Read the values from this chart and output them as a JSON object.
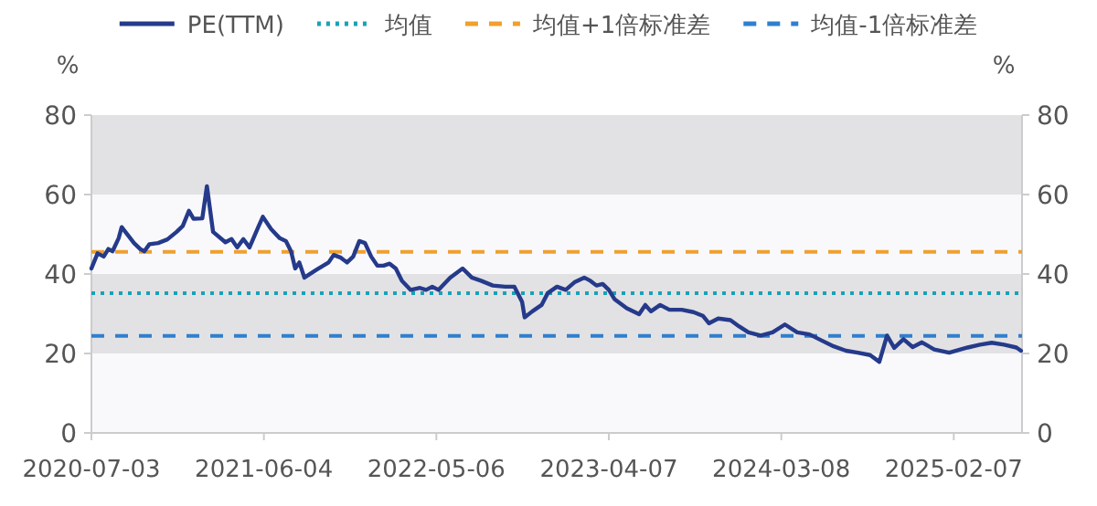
{
  "chart_data": {
    "type": "line",
    "ylabel": "%",
    "y2label": "%",
    "x": [
      "2020-07-03",
      "2020-07-15",
      "2020-07-27",
      "2020-08-05",
      "2020-08-13",
      "2020-08-25",
      "2020-08-31",
      "2020-09-12",
      "2020-09-24",
      "2020-10-06",
      "2020-10-14",
      "2020-10-24",
      "2020-11-10",
      "2020-11-28",
      "2020-12-16",
      "2020-12-28",
      "2021-01-09",
      "2021-01-18",
      "2021-02-04",
      "2021-02-13",
      "2021-02-25",
      "2021-03-21",
      "2021-04-02",
      "2021-04-13",
      "2021-04-25",
      "2021-05-07",
      "2021-05-25",
      "2021-06-02",
      "2021-06-18",
      "2021-07-05",
      "2021-07-17",
      "2021-07-27",
      "2021-08-04",
      "2021-08-12",
      "2021-08-22",
      "2021-09-15",
      "2021-10-08",
      "2021-10-18",
      "2021-11-01",
      "2021-11-13",
      "2021-11-25",
      "2021-12-07",
      "2021-12-18",
      "2021-12-30",
      "2022-01-11",
      "2022-01-23",
      "2022-02-04",
      "2022-02-16",
      "2022-02-28",
      "2022-03-17",
      "2022-04-04",
      "2022-04-16",
      "2022-04-28",
      "2022-05-10",
      "2022-06-02",
      "2022-06-26",
      "2022-07-14",
      "2022-08-01",
      "2022-08-24",
      "2022-09-17",
      "2022-10-05",
      "2022-10-20",
      "2022-10-25",
      "2022-11-09",
      "2022-11-27",
      "2022-12-09",
      "2022-12-27",
      "2023-01-13",
      "2023-01-31",
      "2023-02-18",
      "2023-03-02",
      "2023-03-14",
      "2023-03-26",
      "2023-04-07",
      "2023-04-18",
      "2023-05-12",
      "2023-06-05",
      "2023-06-17",
      "2023-06-28",
      "2023-07-16",
      "2023-08-03",
      "2023-08-27",
      "2023-09-19",
      "2023-10-07",
      "2023-10-19",
      "2023-11-06",
      "2023-11-30",
      "2023-12-17",
      "2024-01-04",
      "2024-01-28",
      "2024-02-20",
      "2024-03-15",
      "2024-04-08",
      "2024-05-02",
      "2024-05-25",
      "2024-06-18",
      "2024-07-12",
      "2024-08-04",
      "2024-08-28",
      "2024-09-15",
      "2024-09-30",
      "2024-10-14",
      "2024-11-01",
      "2024-11-19",
      "2024-12-07",
      "2024-12-31",
      "2025-01-29",
      "2025-03-06",
      "2025-03-30",
      "2025-04-22",
      "2025-05-16",
      "2025-06-09",
      "2025-06-18"
    ],
    "series": [
      {
        "name": "PE(TTM)",
        "color": "#253a8a",
        "values": [
          41.4,
          45.2,
          44.4,
          46.3,
          45.7,
          49.0,
          51.8,
          49.8,
          47.8,
          46.3,
          45.7,
          47.5,
          47.8,
          48.7,
          50.6,
          52.1,
          55.9,
          53.9,
          54.0,
          62.1,
          50.6,
          48.0,
          48.8,
          46.7,
          48.8,
          46.7,
          52.1,
          54.4,
          51.3,
          49.0,
          48.3,
          45.7,
          41.4,
          42.9,
          39.1,
          41.1,
          42.9,
          44.8,
          44.1,
          42.9,
          44.4,
          48.3,
          47.8,
          44.4,
          42.1,
          42.1,
          42.6,
          41.4,
          38.3,
          36.0,
          36.5,
          36.0,
          36.8,
          36.0,
          39.1,
          41.4,
          39.1,
          38.3,
          37.1,
          36.8,
          36.8,
          33.0,
          29.1,
          30.6,
          32.2,
          35.2,
          36.8,
          36.0,
          38.0,
          39.1,
          38.3,
          37.1,
          37.5,
          36.0,
          33.7,
          31.4,
          29.9,
          32.2,
          30.6,
          32.2,
          31.0,
          31.0,
          30.4,
          29.5,
          27.6,
          28.8,
          28.4,
          26.8,
          25.3,
          24.5,
          25.3,
          27.3,
          25.3,
          24.8,
          23.3,
          21.8,
          20.7,
          20.2,
          19.6,
          17.9,
          24.5,
          21.4,
          23.6,
          21.6,
          22.8,
          21.0,
          20.2,
          21.5,
          22.2,
          22.7,
          22.2,
          21.5,
          20.7
        ]
      }
    ],
    "ref_lines": [
      {
        "axis": "y",
        "value": 35.2,
        "label": "均值",
        "color": "#17a2b8",
        "line_style": "dotted"
      },
      {
        "axis": "y",
        "value": 45.6,
        "label": "均值+1倍标准差",
        "color": "#f0a02c",
        "line_style": "dashed"
      },
      {
        "axis": "y",
        "value": 24.4,
        "label": "均值-1倍标准差",
        "color": "#2f7fcf",
        "line_style": "dashed"
      }
    ],
    "bands": [
      {
        "axis": "y",
        "from": 60,
        "to": 80,
        "color": "#e2e2e4"
      },
      {
        "axis": "y",
        "from": 20,
        "to": 40,
        "color": "#e2e2e4"
      }
    ],
    "xlim": [
      "2020-07-03",
      "2025-06-20"
    ],
    "xticks": [
      "2020-07-03",
      "2021-06-04",
      "2022-05-06",
      "2023-04-07",
      "2024-03-08",
      "2025-02-07"
    ],
    "ylim": [
      0,
      80
    ],
    "yticks": [
      0,
      20,
      40,
      60,
      80
    ],
    "y2lim": [
      0,
      80
    ],
    "y2ticks": [
      0,
      20,
      40,
      60,
      80
    ],
    "legend": "top",
    "line_style": "solid",
    "marker": "none"
  }
}
